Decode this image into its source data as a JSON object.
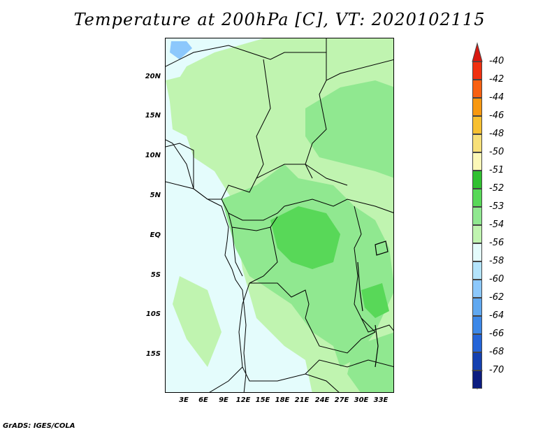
{
  "title": "Temperature at 200hPa [C], VT: 2020102115",
  "credit": "GrADS: IGES/COLA",
  "map": {
    "lat_labels": [
      "20N",
      "15N",
      "10N",
      "5N",
      "EQ",
      "5S",
      "10S",
      "15S"
    ],
    "lon_labels": [
      "3E",
      "6E",
      "9E",
      "12E",
      "15E",
      "18E",
      "21E",
      "24E",
      "27E",
      "30E",
      "33E"
    ]
  },
  "legend": {
    "labels": [
      "-40",
      "-42",
      "-44",
      "-46",
      "-48",
      "-50",
      "-51",
      "-52",
      "-53",
      "-54",
      "-56",
      "-58",
      "-60",
      "-62",
      "-64",
      "-66",
      "-68",
      "-70"
    ],
    "colors": [
      "#f03010",
      "#f86010",
      "#f89810",
      "#f8c030",
      "#f8e078",
      "#fcf8b8",
      "#30c030",
      "#58d858",
      "#90e890",
      "#c0f4b0",
      "#e4fcfc",
      "#b4e4fc",
      "#8cc8fc",
      "#60a8f0",
      "#3c88e8",
      "#2464d8",
      "#1440b0",
      "#0c1c80"
    ],
    "arrow_top_color": "#d81810",
    "arrow_bottom_color": "#dcdcf4"
  },
  "field_colors": {
    "ocean_base": "#e4fcfc",
    "level_53": "#c0f4b0",
    "level_52": "#90e890",
    "level_51": "#58d858",
    "cold_patch": "#8cc8fc"
  }
}
